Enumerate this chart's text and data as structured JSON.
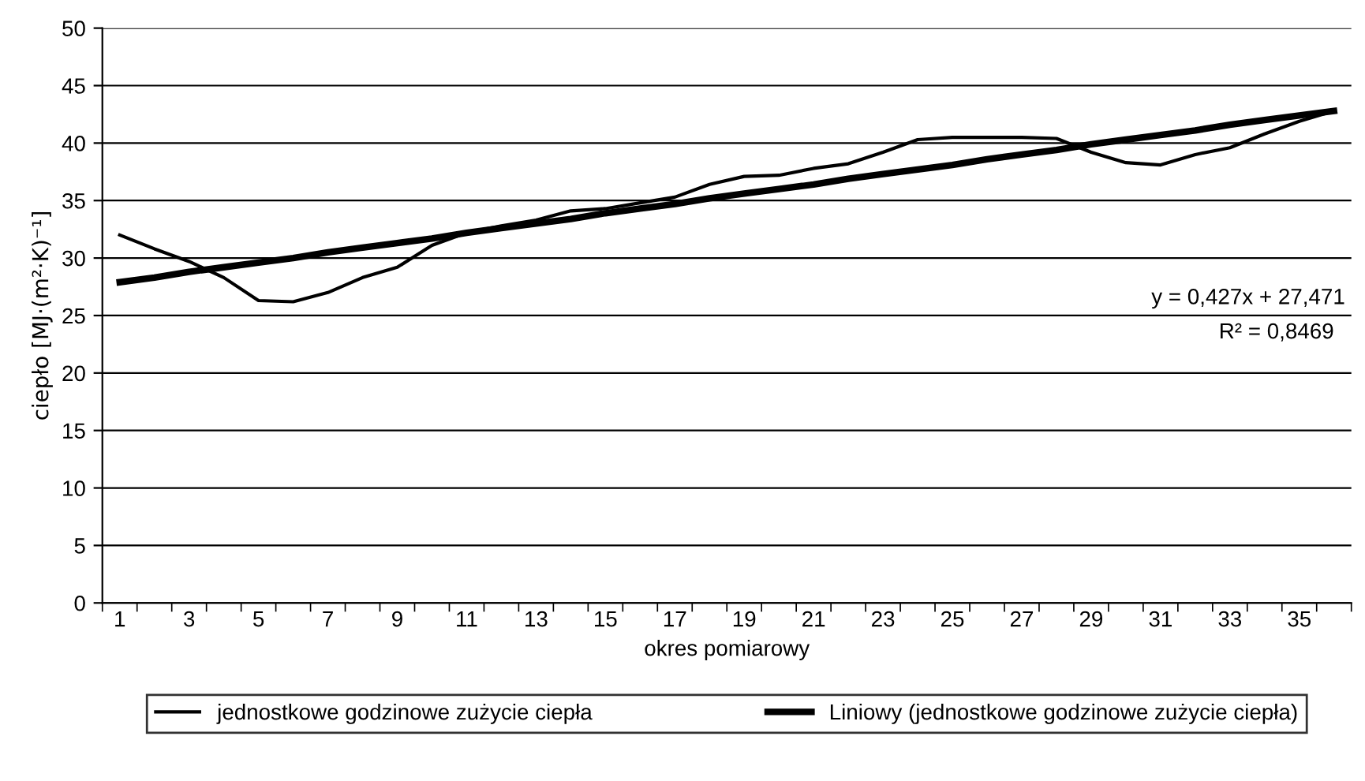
{
  "chart_data": {
    "type": "line",
    "xlabel": "okres pomiarowy",
    "ylabel": "ciepło [MJ·(m²·K)⁻¹]",
    "categories": [
      "1",
      null,
      "3",
      null,
      "5",
      null,
      "7",
      null,
      "9",
      null,
      "11",
      null,
      "13",
      null,
      "15",
      null,
      "17",
      null,
      "19",
      null,
      "21",
      null,
      "23",
      null,
      "25",
      null,
      "27",
      null,
      "29",
      null,
      "31",
      null,
      "33",
      null,
      "35",
      null
    ],
    "series": [
      {
        "name": "jednostkowe godzinowe zużycie ciepła",
        "color": "#000000",
        "values": [
          32.0,
          30.8,
          29.7,
          28.3,
          26.3,
          26.2,
          27.0,
          28.3,
          29.2,
          31.1,
          32.2,
          32.8,
          33.3,
          34.1,
          34.3,
          34.8,
          35.3,
          36.4,
          37.1,
          37.2,
          37.8,
          38.2,
          39.2,
          40.3,
          40.5,
          40.5,
          40.5,
          40.4,
          39.2,
          38.3,
          38.1,
          39.0,
          39.6,
          40.8,
          41.9,
          42.8
        ]
      },
      {
        "name": "Liniowy (jednostkowe godzinowe zużycie ciepła)",
        "color": "#000000",
        "values": [
          27.9,
          28.3,
          28.8,
          29.2,
          29.6,
          30.0,
          30.5,
          30.9,
          31.3,
          31.7,
          32.2,
          32.6,
          33.0,
          33.4,
          33.9,
          34.3,
          34.7,
          35.2,
          35.6,
          36.0,
          36.4,
          36.9,
          37.3,
          37.7,
          38.1,
          38.6,
          39.0,
          39.4,
          39.9,
          40.3,
          40.7,
          41.1,
          41.6,
          42.0,
          42.4,
          42.8
        ]
      }
    ],
    "ylim": [
      0,
      50
    ],
    "yticks": [
      0,
      5,
      10,
      15,
      20,
      25,
      30,
      35,
      40,
      45,
      50
    ],
    "grid": "y",
    "legend": "bottom",
    "annotations": [
      "y = 0,427x + 27,471",
      "R² = 0,8469"
    ]
  }
}
